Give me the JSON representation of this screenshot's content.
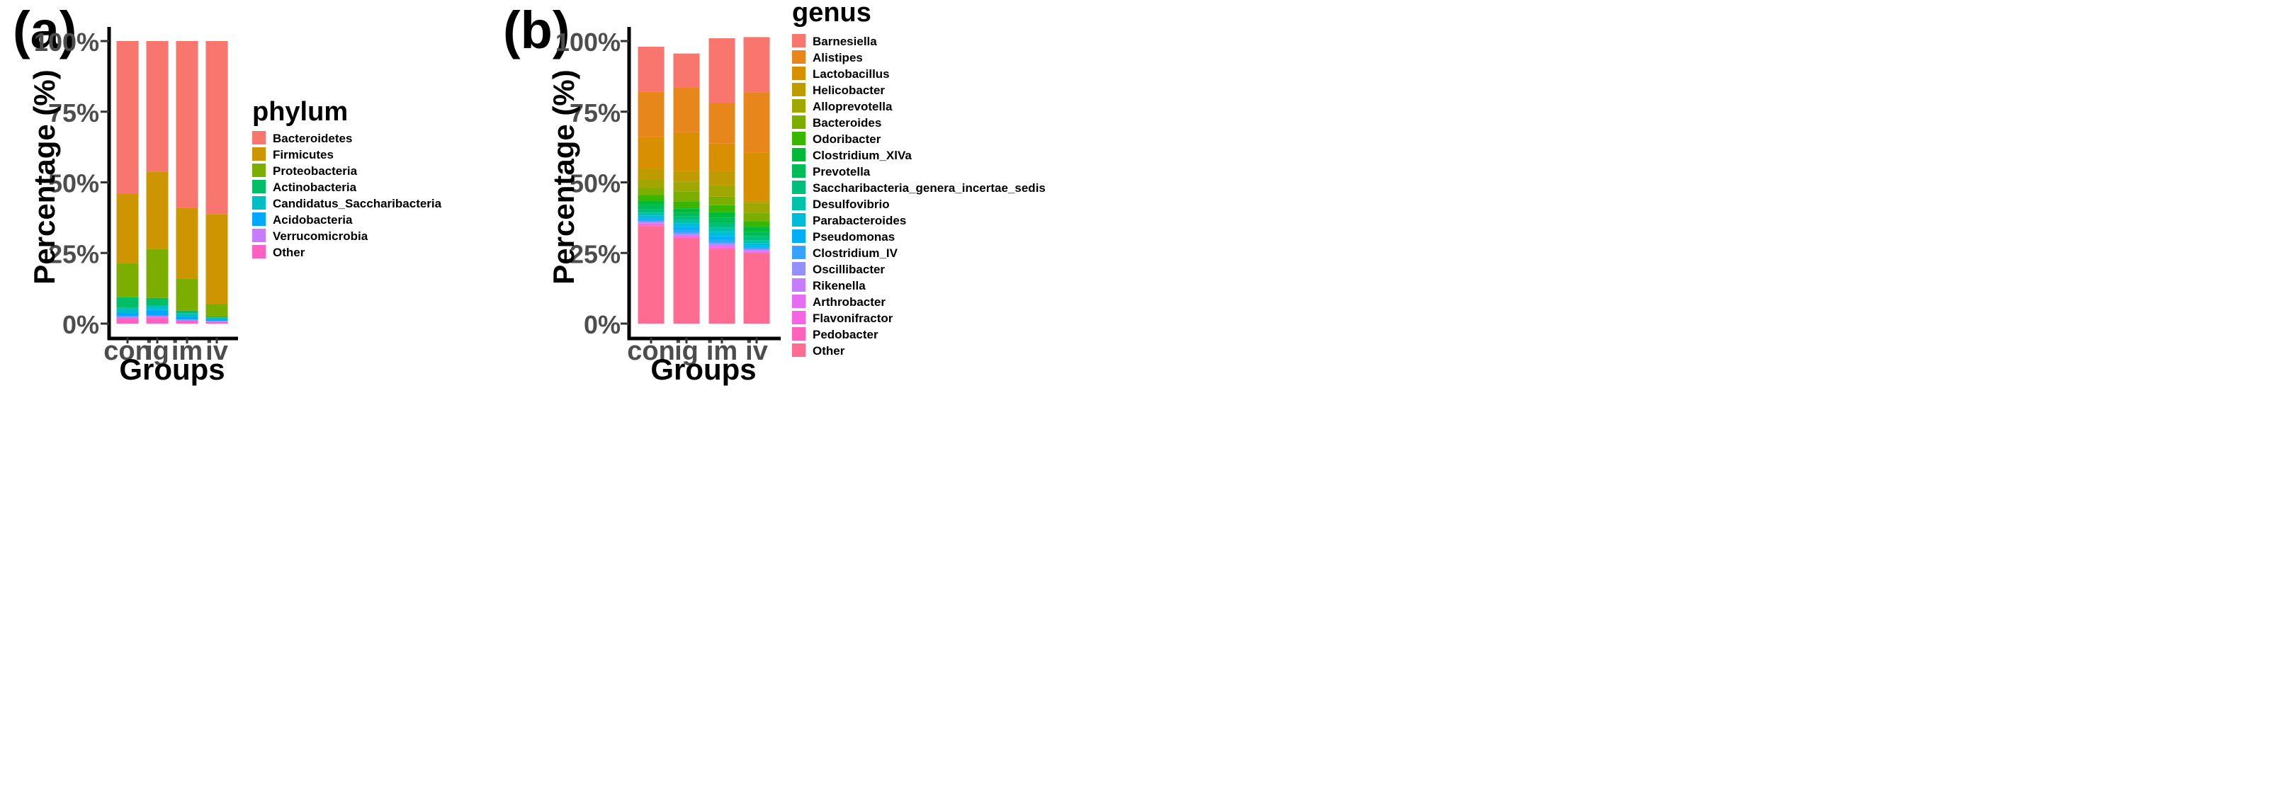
{
  "figure": {
    "panels": [
      {
        "label": "(a)",
        "legend_title": "phylum"
      },
      {
        "label": "(b)",
        "legend_title": "genus"
      }
    ]
  },
  "chart_data": [
    {
      "type": "bar",
      "stacked": true,
      "panel_label": "(a)",
      "title": "",
      "xlabel": "Groups",
      "ylabel": "Percentage (%)",
      "ylim": [
        0,
        100
      ],
      "y_ticks": [
        "0%",
        "25%",
        "50%",
        "75%",
        "100%"
      ],
      "y_tick_values": [
        0,
        25,
        50,
        75,
        100
      ],
      "categories": [
        "con",
        "ig",
        "im",
        "iv"
      ],
      "legend_title": "phylum",
      "series": [
        {
          "name": "Other",
          "color": "#FF61C3",
          "values": [
            2.0,
            2.2,
            1.0,
            0.7
          ]
        },
        {
          "name": "Verrucomicrobia",
          "color": "#C77CFF",
          "values": [
            0.6,
            0.6,
            0.5,
            0.3
          ]
        },
        {
          "name": "Acidobacteria",
          "color": "#00A9FF",
          "values": [
            1.4,
            2.0,
            1.0,
            0.5
          ]
        },
        {
          "name": "Candidatus_Saccharibacteria",
          "color": "#00BFC4",
          "values": [
            1.6,
            1.6,
            1.2,
            0.7
          ]
        },
        {
          "name": "Actinobacteria",
          "color": "#00BE67",
          "values": [
            3.7,
            2.7,
            0.9,
            0.3
          ]
        },
        {
          "name": "Proteobacteria",
          "color": "#7CAE00",
          "values": [
            12.2,
            17.4,
            11.4,
            4.5
          ]
        },
        {
          "name": "Firmicutes",
          "color": "#CD9600",
          "values": [
            24.5,
            27.3,
            25.0,
            31.8
          ]
        },
        {
          "name": "Bacteroidetes",
          "color": "#F8766D",
          "values": [
            54.0,
            46.2,
            59.0,
            61.2
          ]
        }
      ],
      "legend_order": [
        "Bacteroidetes",
        "Firmicutes",
        "Proteobacteria",
        "Actinobacteria",
        "Candidatus_Saccharibacteria",
        "Acidobacteria",
        "Verrucomicrobia",
        "Other"
      ]
    },
    {
      "type": "bar",
      "stacked": true,
      "panel_label": "(b)",
      "title": "",
      "xlabel": "Groups",
      "ylabel": "Percentage (%)",
      "ylim": [
        0,
        100
      ],
      "y_ticks": [
        "0%",
        "25%",
        "50%",
        "75%",
        "100%"
      ],
      "y_tick_values": [
        0,
        25,
        50,
        75,
        100
      ],
      "categories": [
        "con",
        "ig",
        "im",
        "iv"
      ],
      "legend_title": "genus",
      "series": [
        {
          "name": "Other",
          "color": "#FF6C91",
          "values": [
            34.5,
            30.2,
            26.4,
            24.8
          ]
        },
        {
          "name": "Pedobacter",
          "color": "#FF62BC",
          "values": [
            0.3,
            0.3,
            0.3,
            0.3
          ]
        },
        {
          "name": "Flavonifractor",
          "color": "#F763E0",
          "values": [
            0.3,
            0.3,
            0.3,
            0.3
          ]
        },
        {
          "name": "Arthrobacter",
          "color": "#E76BF3",
          "values": [
            0.4,
            0.3,
            0.4,
            0.3
          ]
        },
        {
          "name": "Rikenella",
          "color": "#C77CFF",
          "values": [
            0.3,
            0.4,
            0.5,
            0.3
          ]
        },
        {
          "name": "Oscillibacter",
          "color": "#9590FF",
          "values": [
            0.4,
            0.6,
            0.7,
            0.4
          ]
        },
        {
          "name": "Clostridium_IV",
          "color": "#35A2FF",
          "values": [
            0.5,
            1.0,
            1.0,
            0.5
          ]
        },
        {
          "name": "Pseudomonas",
          "color": "#00B0F6",
          "values": [
            0.6,
            1.2,
            1.3,
            0.6
          ]
        },
        {
          "name": "Parabacteroides",
          "color": "#00BCD8",
          "values": [
            1.0,
            1.2,
            1.5,
            1.0
          ]
        },
        {
          "name": "Desulfovibrio",
          "color": "#00C1AA",
          "values": [
            1.0,
            1.2,
            1.5,
            1.0
          ]
        },
        {
          "name": "Saccharibacteria_genera_incertae_sedis",
          "color": "#00BF7D",
          "values": [
            1.2,
            1.3,
            1.7,
            1.5
          ]
        },
        {
          "name": "Prevotella",
          "color": "#00BC56",
          "values": [
            1.5,
            1.3,
            1.8,
            1.5
          ]
        },
        {
          "name": "Clostridium_XlVa",
          "color": "#00BA38",
          "values": [
            1.5,
            1.5,
            2.0,
            1.8
          ]
        },
        {
          "name": "Odoribacter",
          "color": "#39B600",
          "values": [
            2.0,
            2.5,
            2.5,
            2.0
          ]
        },
        {
          "name": "Bacteroides",
          "color": "#7CAE00",
          "values": [
            2.5,
            3.5,
            3.0,
            3.0
          ]
        },
        {
          "name": "Alloprevotella",
          "color": "#9FA700",
          "values": [
            3.0,
            3.5,
            4.0,
            3.5
          ]
        },
        {
          "name": "Helicobacter",
          "color": "#C09B00",
          "values": [
            4.0,
            3.8,
            5.0,
            0.7
          ]
        },
        {
          "name": "Lactobacillus",
          "color": "#D89000",
          "values": [
            11.0,
            13.6,
            9.8,
            17.0
          ]
        },
        {
          "name": "Alistipes",
          "color": "#E7861B",
          "values": [
            16.0,
            15.9,
            14.5,
            21.4
          ]
        },
        {
          "name": "Barnesiella",
          "color": "#F8766D",
          "values": [
            16.0,
            12.0,
            22.8,
            19.5
          ]
        }
      ],
      "legend_order": [
        "Barnesiella",
        "Alistipes",
        "Lactobacillus",
        "Helicobacter",
        "Alloprevotella",
        "Bacteroides",
        "Odoribacter",
        "Clostridium_XlVa",
        "Prevotella",
        "Saccharibacteria_genera_incertae_sedis",
        "Desulfovibrio",
        "Parabacteroides",
        "Pseudomonas",
        "Clostridium_IV",
        "Oscillibacter",
        "Rikenella",
        "Arthrobacter",
        "Flavonifractor",
        "Pedobacter",
        "Other"
      ]
    }
  ]
}
